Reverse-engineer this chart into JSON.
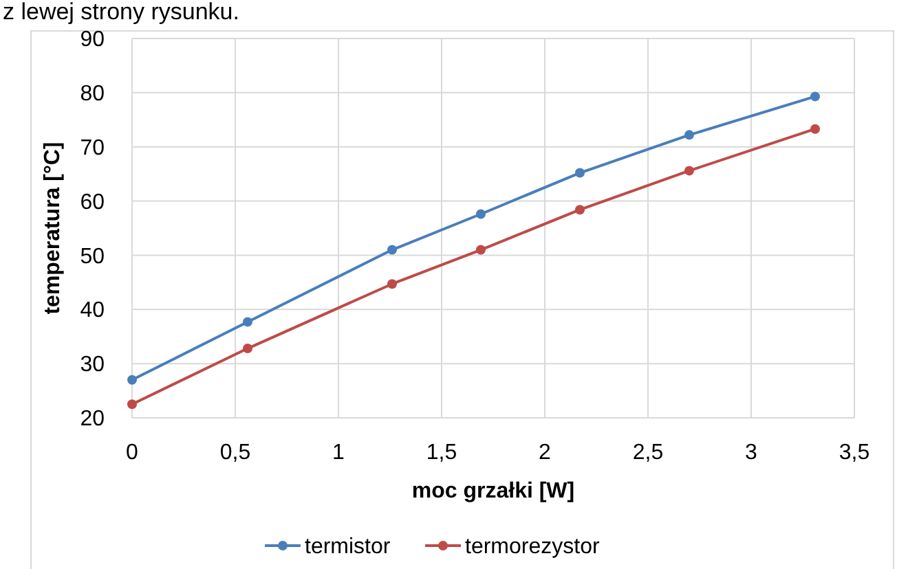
{
  "chart_data": {
    "type": "line",
    "xlabel": "moc grzałki [W]",
    "ylabel": "temperatura [°C]",
    "annotations": [
      "z lewej strony rysunku."
    ],
    "series": [
      {
        "name": "termistor",
        "color": "#4a7ebb",
        "x": [
          0,
          0.56,
          1.26,
          1.69,
          2.17,
          2.7,
          3.31
        ],
        "values": [
          27,
          37.7,
          51,
          57.6,
          65.2,
          72.2,
          79.3
        ]
      },
      {
        "name": "termorezystor",
        "color": "#be4b48",
        "x": [
          0,
          0.56,
          1.26,
          1.69,
          2.17,
          2.7,
          3.31
        ],
        "values": [
          22.5,
          32.8,
          44.7,
          51,
          58.4,
          65.6,
          73.3
        ]
      }
    ],
    "xlim": [
      0,
      3.5
    ],
    "xticks": [
      0,
      {
        "value": 0.5,
        "label": "0,5"
      },
      1,
      {
        "value": 1.5,
        "label": "1,5"
      },
      2,
      {
        "value": 2.5,
        "label": "2,5"
      },
      3,
      {
        "value": 3.5,
        "label": "3,5"
      }
    ],
    "ylim": [
      20,
      90
    ],
    "yticks": [
      20,
      30,
      40,
      50,
      60,
      70,
      80,
      90
    ],
    "grid": true,
    "legend": "bottom",
    "marker": "circle",
    "line_style": "solid"
  }
}
